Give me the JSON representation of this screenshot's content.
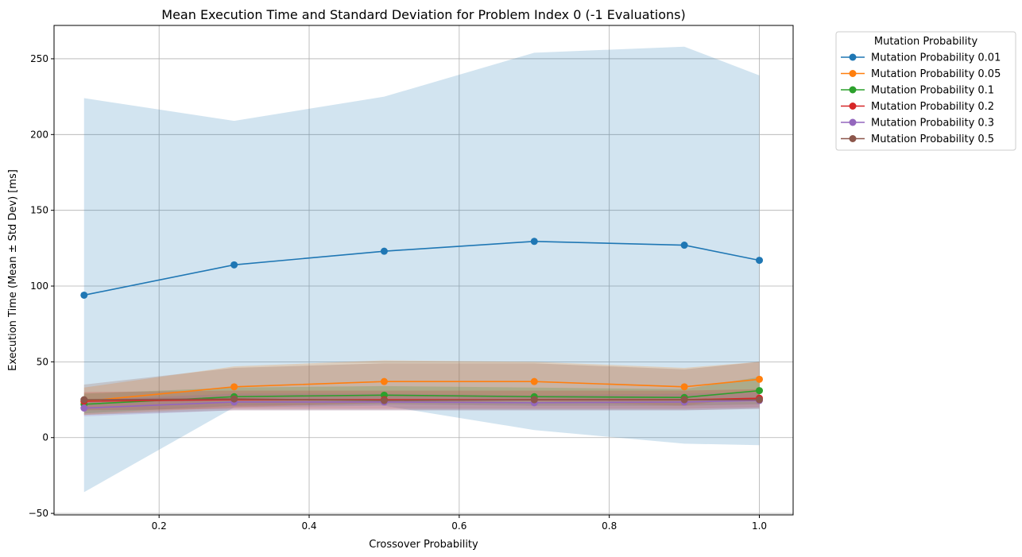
{
  "chart_data": {
    "type": "line",
    "title": "Mean Execution Time and Standard Deviation for Problem Index 0 (-1 Evaluations)",
    "xlabel": "Crossover Probability",
    "ylabel": "Execution Time (Mean ± Std Dev) [ms]",
    "xlim": [
      0.06,
      1.045
    ],
    "ylim": [
      -51,
      272
    ],
    "xticks": [
      0.2,
      0.4,
      0.6,
      0.8,
      1.0
    ],
    "xtick_labels": [
      "0.2",
      "0.4",
      "0.6",
      "0.8",
      "1.0"
    ],
    "yticks": [
      -50,
      0,
      50,
      100,
      150,
      200,
      250
    ],
    "ytick_labels": [
      "−50",
      "0",
      "50",
      "100",
      "150",
      "200",
      "250"
    ],
    "grid": true,
    "legend_title": "Mutation Probability",
    "legend_position": "outside top-right",
    "x": [
      0.1,
      0.3,
      0.5,
      0.7,
      0.9,
      1.0
    ],
    "series": [
      {
        "name": "Mutation Probability 0.01",
        "color": "#1f77b4",
        "values": [
          94,
          114,
          123,
          129.5,
          127,
          117
        ],
        "upper": [
          224,
          209,
          225,
          254,
          258,
          239
        ],
        "lower": [
          -36,
          20,
          21,
          5,
          -4,
          -5
        ]
      },
      {
        "name": "Mutation Probability 0.05",
        "color": "#ff7f0e",
        "values": [
          24,
          33.5,
          37,
          37,
          33.5,
          38.5
        ],
        "upper": [
          33,
          47,
          51,
          50,
          46,
          50
        ],
        "lower": [
          15,
          20,
          23,
          24,
          21,
          27
        ]
      },
      {
        "name": "Mutation Probability 0.1",
        "color": "#2ca02c",
        "values": [
          22,
          27,
          28,
          27,
          26.5,
          31
        ],
        "upper": [
          29,
          33,
          34,
          33,
          32,
          40
        ],
        "lower": [
          16,
          21,
          22,
          21,
          21,
          22
        ]
      },
      {
        "name": "Mutation Probability 0.2",
        "color": "#d62728",
        "values": [
          24,
          25,
          25,
          25,
          25,
          26
        ],
        "upper": [
          30,
          31,
          31,
          31,
          31,
          32
        ],
        "lower": [
          18,
          19,
          19,
          19,
          19,
          20
        ]
      },
      {
        "name": "Mutation Probability 0.3",
        "color": "#9467bd",
        "values": [
          19.5,
          23.5,
          23.5,
          23,
          23.5,
          24.5
        ],
        "upper": [
          25,
          29,
          29,
          28,
          29,
          30
        ],
        "lower": [
          14,
          18,
          18,
          18,
          18,
          19
        ]
      },
      {
        "name": "Mutation Probability 0.5",
        "color": "#8c564b",
        "values": [
          25,
          25.5,
          24.5,
          25,
          25,
          25
        ],
        "upper": [
          35,
          46,
          49,
          49,
          45,
          50
        ],
        "lower": [
          15,
          18,
          18,
          18,
          18,
          19
        ]
      }
    ]
  }
}
